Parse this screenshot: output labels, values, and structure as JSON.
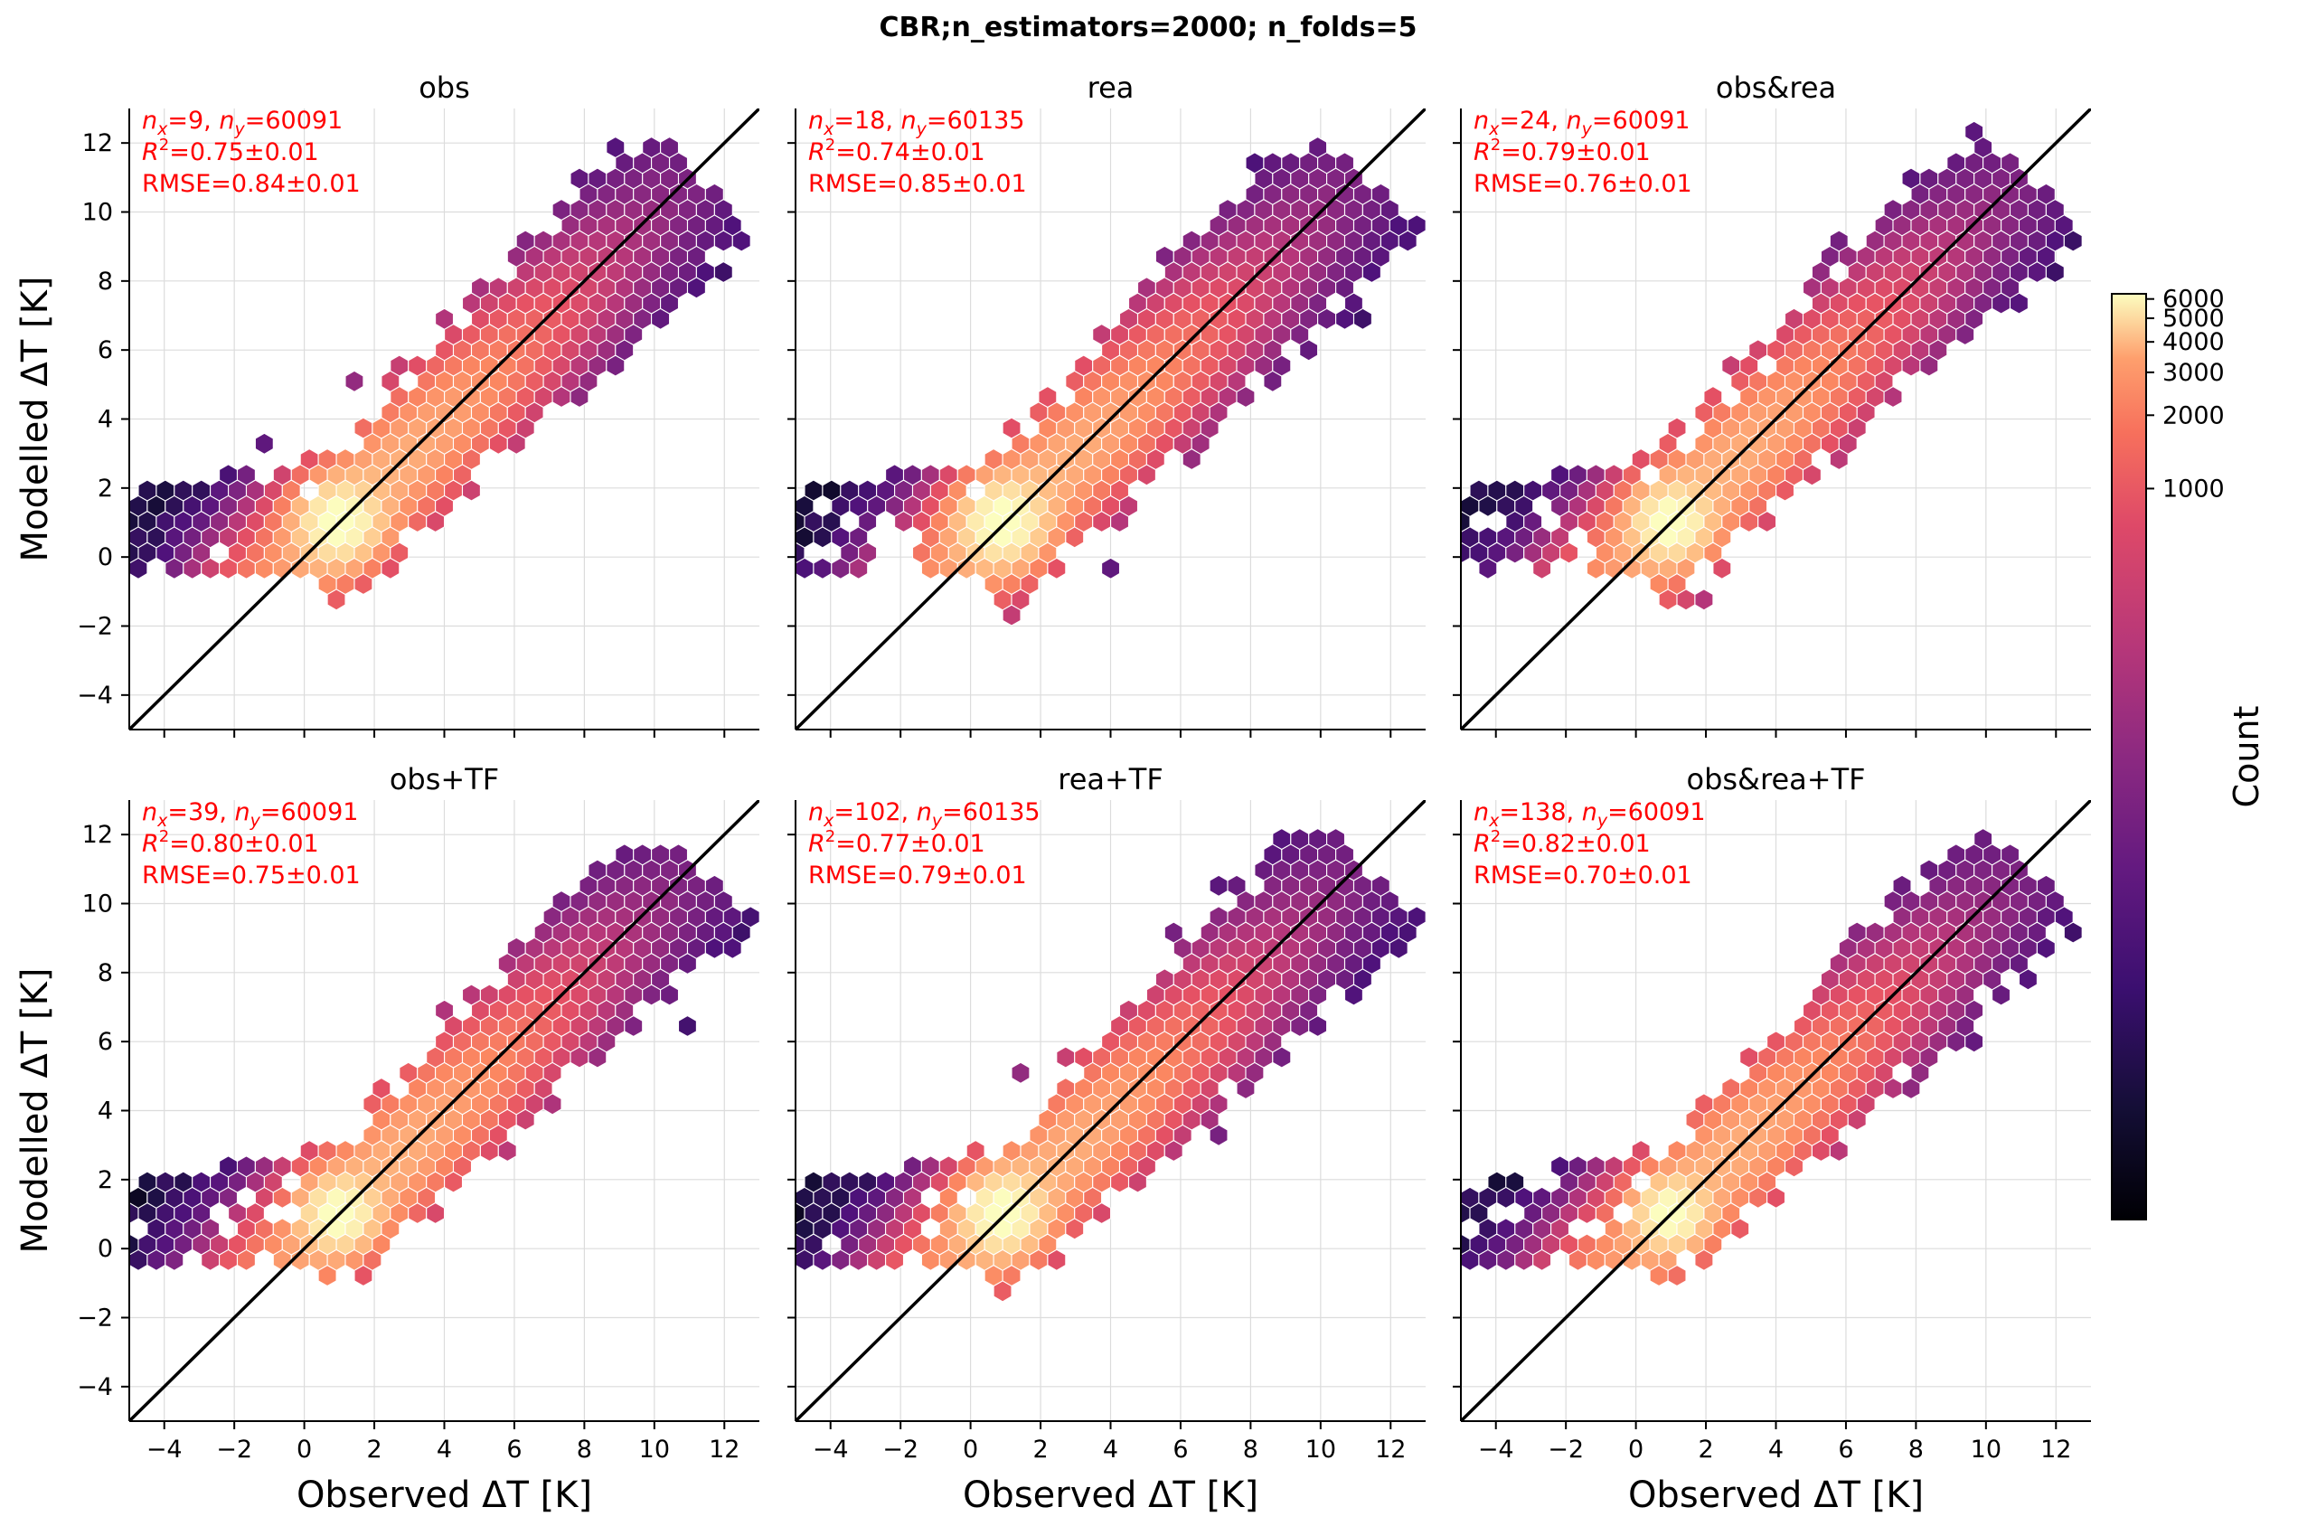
{
  "figure": {
    "title": "CBR;n_estimators=2000; n_folds=5"
  },
  "chart_data": [
    {
      "type": "hexbin",
      "panel": "obs",
      "title": "obs",
      "xlabel": "Observed ΔT [K]",
      "ylabel": "Modelled ΔT [K]",
      "xlim": [
        -5,
        13
      ],
      "ylim": [
        -5,
        13
      ],
      "xticks": [
        -4,
        -2,
        0,
        2,
        4,
        6,
        8,
        10,
        12
      ],
      "yticks": [
        -4,
        -2,
        0,
        2,
        4,
        6,
        8,
        10,
        12
      ],
      "grid": true,
      "reference_line": "y = x",
      "annotation": {
        "nx": "9",
        "ny": "60091",
        "r2": "0.75±0.01",
        "rmse": "0.84±0.01"
      },
      "peak": [
        1.0,
        1.0
      ],
      "spread": 1.0
    },
    {
      "type": "hexbin",
      "panel": "rea",
      "title": "rea",
      "xlabel": "Observed ΔT [K]",
      "ylabel": "",
      "xlim": [
        -5,
        13
      ],
      "ylim": [
        -5,
        13
      ],
      "xticks": [
        -4,
        -2,
        0,
        2,
        4,
        6,
        8,
        10,
        12
      ],
      "yticks": [
        -4,
        -2,
        0,
        2,
        4,
        6,
        8,
        10,
        12
      ],
      "grid": true,
      "reference_line": "y = x",
      "annotation": {
        "nx": "18",
        "ny": "60135",
        "r2": "0.74±0.01",
        "rmse": "0.85±0.01"
      },
      "peak": [
        0.9,
        1.0
      ],
      "spread": 1.05
    },
    {
      "type": "hexbin",
      "panel": "obs&rea",
      "title": "obs&rea",
      "xlabel": "Observed ΔT [K]",
      "ylabel": "",
      "xlim": [
        -5,
        13
      ],
      "ylim": [
        -5,
        13
      ],
      "xticks": [
        -4,
        -2,
        0,
        2,
        4,
        6,
        8,
        10,
        12
      ],
      "yticks": [
        -4,
        -2,
        0,
        2,
        4,
        6,
        8,
        10,
        12
      ],
      "grid": true,
      "reference_line": "y = x",
      "annotation": {
        "nx": "24",
        "ny": "60091",
        "r2": "0.79±0.01",
        "rmse": "0.76±0.01"
      },
      "peak": [
        1.0,
        1.0
      ],
      "spread": 0.95
    },
    {
      "type": "hexbin",
      "panel": "obs+TF",
      "title": "obs+TF",
      "xlabel": "Observed ΔT [K]",
      "ylabel": "Modelled ΔT [K]",
      "xlim": [
        -5,
        13
      ],
      "ylim": [
        -5,
        13
      ],
      "xticks": [
        -4,
        -2,
        0,
        2,
        4,
        6,
        8,
        10,
        12
      ],
      "yticks": [
        -4,
        -2,
        0,
        2,
        4,
        6,
        8,
        10,
        12
      ],
      "grid": true,
      "reference_line": "y = x",
      "annotation": {
        "nx": "39",
        "ny": "60091",
        "r2": "0.80±0.01",
        "rmse": "0.75±0.01"
      },
      "peak": [
        1.0,
        1.0
      ],
      "spread": 0.9
    },
    {
      "type": "hexbin",
      "panel": "rea+TF",
      "title": "rea+TF",
      "xlabel": "Observed ΔT [K]",
      "ylabel": "",
      "xlim": [
        -5,
        13
      ],
      "ylim": [
        -5,
        13
      ],
      "xticks": [
        -4,
        -2,
        0,
        2,
        4,
        6,
        8,
        10,
        12
      ],
      "yticks": [
        -4,
        -2,
        0,
        2,
        4,
        6,
        8,
        10,
        12
      ],
      "grid": true,
      "reference_line": "y = x",
      "annotation": {
        "nx": "102",
        "ny": "60135",
        "r2": "0.77±0.01",
        "rmse": "0.79±0.01"
      },
      "peak": [
        0.9,
        1.0
      ],
      "spread": 1.0
    },
    {
      "type": "hexbin",
      "panel": "obs&rea+TF",
      "title": "obs&rea+TF",
      "xlabel": "Observed ΔT [K]",
      "ylabel": "",
      "xlim": [
        -5,
        13
      ],
      "ylim": [
        -5,
        13
      ],
      "xticks": [
        -4,
        -2,
        0,
        2,
        4,
        6,
        8,
        10,
        12
      ],
      "yticks": [
        -4,
        -2,
        0,
        2,
        4,
        6,
        8,
        10,
        12
      ],
      "grid": true,
      "reference_line": "y = x",
      "annotation": {
        "nx": "138",
        "ny": "60091",
        "r2": "0.82±0.01",
        "rmse": "0.70±0.01"
      },
      "peak": [
        1.0,
        1.0
      ],
      "spread": 0.85
    }
  ],
  "colorbar": {
    "label": "Count",
    "colormap": "magma",
    "scale": "log",
    "ticks": [
      "1000",
      "2000",
      "3000",
      "4000",
      "5000",
      "6000"
    ],
    "tick_values": [
      1000,
      2000,
      3000,
      4000,
      5000,
      6000
    ],
    "range": [
      1,
      6300
    ]
  },
  "colors": {
    "annotation": "#ff0000",
    "grid": "#dcdcdc",
    "axis": "#000000",
    "hex_edge": "#ffffff"
  }
}
